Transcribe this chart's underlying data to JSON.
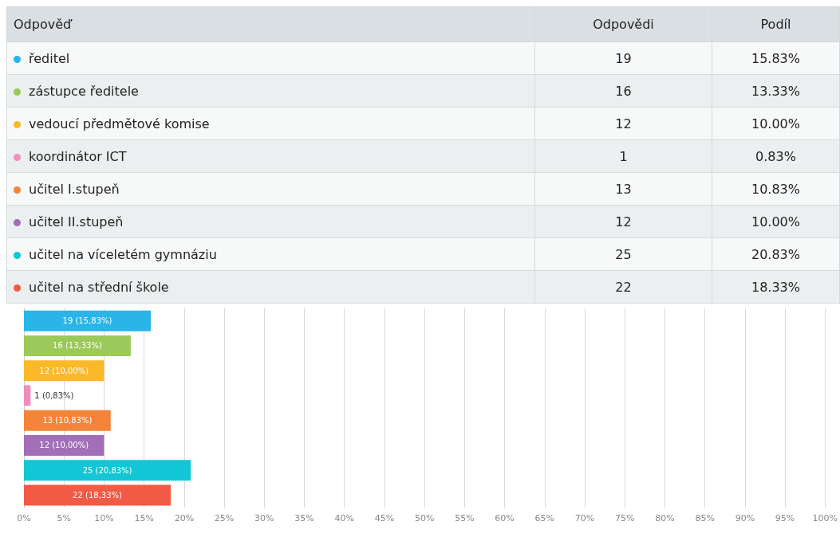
{
  "chart_data": [
    {
      "type": "other",
      "annotations": [
        "Odpověď"
      ],
      "data_labels": true,
      "categories": [
        "ředitel",
        "zástupce ředitele",
        "vedoucí předmětové komise",
        "koordinátor ICT",
        "učitel I.stupeň",
        "učitel II.stupeň",
        "učitel na víceletém gymnáziu",
        "učitel na střední škole"
      ],
      "colors": [
        "#29b5e8",
        "#9bc95a",
        "#fbb829",
        "#f28dbf",
        "#f5843a",
        "#a16eb8",
        "#12c6d6",
        "#f15a45"
      ],
      "series": [
        {
          "name": "Odpovědi",
          "colors": [
            "#f7f8f8",
            "#eceff0",
            "#f7f8f8",
            "#eceff0",
            "#f7f8f8",
            "#eceff0",
            "#f7f8f8",
            "#eceff0"
          ],
          "values": [
            19,
            16,
            12,
            1,
            13,
            12,
            25,
            22
          ]
        },
        {
          "name": "Podíl",
          "colors": [
            "#f7f8f8",
            "#eceff0",
            "#f7f8f8",
            "#eceff0",
            "#f7f8f8",
            "#eceff0",
            "#f7f8f8",
            "#eceff0"
          ],
          "values": [
            15.83,
            13.33,
            10.0,
            0.83,
            10.83,
            10.0,
            20.83,
            18.33
          ],
          "value_labels": [
            "15.83%",
            "13.33%",
            "10.00%",
            "0.83%",
            "10.83%",
            "10.00%",
            "20.83%",
            "18.33%"
          ]
        }
      ]
    },
    {
      "type": "bar",
      "orientation": "horizontal",
      "grid": "x",
      "categories": [
        null,
        null,
        null,
        null,
        null,
        null,
        null,
        null
      ],
      "colors": [
        "#29b5e8",
        "#9bc95a",
        "#fbb829",
        "#f28dbf",
        "#f5843a",
        "#a16eb8",
        "#12c6d6",
        "#f15a45"
      ],
      "values": [
        15.83,
        13.33,
        10.0,
        0.83,
        10.83,
        10.0,
        20.83,
        18.33
      ],
      "value_labels": [
        "19 (15,83%)",
        "16 (13,33%)",
        "12 (10,00%)",
        "1 (0,83%)",
        "13 (10,83%)",
        "12 (10,00%)",
        "25 (20,83%)",
        "22 (18,33%)"
      ],
      "xlim": [
        0,
        100
      ],
      "xticks": [
        {
          "value": 0,
          "label": "0%"
        },
        {
          "value": 5,
          "label": "5%"
        },
        {
          "value": 10,
          "label": "10%"
        },
        {
          "value": 15,
          "label": "15%"
        },
        {
          "value": 20,
          "label": "20%"
        },
        {
          "value": 25,
          "label": "25%"
        },
        {
          "value": 30,
          "label": "30%"
        },
        {
          "value": 35,
          "label": "35%"
        },
        {
          "value": 40,
          "label": "40%"
        },
        {
          "value": 45,
          "label": "45%"
        },
        {
          "value": 50,
          "label": "50%"
        },
        {
          "value": 55,
          "label": "55%"
        },
        {
          "value": 60,
          "label": "60%"
        },
        {
          "value": 65,
          "label": "65%"
        },
        {
          "value": 70,
          "label": "70%"
        },
        {
          "value": 75,
          "label": "75%"
        },
        {
          "value": 80,
          "label": "80%"
        },
        {
          "value": 85,
          "label": "85%"
        },
        {
          "value": 90,
          "label": "90%"
        },
        {
          "value": 95,
          "label": "95%"
        },
        {
          "value": 100,
          "label": "100%"
        }
      ]
    }
  ]
}
